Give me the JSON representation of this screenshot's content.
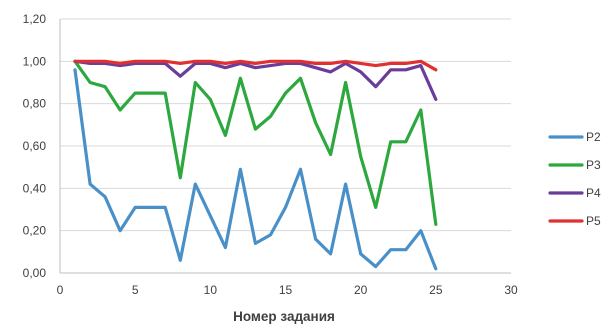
{
  "chart_data": {
    "type": "line",
    "title": "",
    "xlabel": "Номер задания",
    "ylabel": "",
    "xlim": [
      0,
      30
    ],
    "ylim": [
      0,
      1.2
    ],
    "x_ticks": [
      0,
      5,
      10,
      15,
      20,
      25,
      30
    ],
    "y_ticks": [
      0,
      0.2,
      0.4,
      0.6,
      0.8,
      1.0,
      1.2
    ],
    "x_tick_labels": [
      "0",
      "5",
      "10",
      "15",
      "20",
      "25",
      "30"
    ],
    "y_tick_labels": [
      "0,00",
      "0,20",
      "0,40",
      "0,60",
      "0,80",
      "1,00",
      "1,20"
    ],
    "grid": "horizontal",
    "legend_position": "right",
    "x": [
      1,
      2,
      3,
      4,
      5,
      6,
      7,
      8,
      9,
      10,
      11,
      12,
      13,
      14,
      15,
      16,
      17,
      18,
      19,
      20,
      21,
      22,
      23,
      24,
      25
    ],
    "series": [
      {
        "name": "P2",
        "color": "#4A90C8",
        "values": [
          0.96,
          0.42,
          0.36,
          0.2,
          0.31,
          0.31,
          0.31,
          0.06,
          0.42,
          0.27,
          0.12,
          0.49,
          0.14,
          0.18,
          0.31,
          0.49,
          0.16,
          0.09,
          0.42,
          0.09,
          0.03,
          0.11,
          0.11,
          0.2,
          0.02
        ]
      },
      {
        "name": "P3",
        "color": "#2CA83F",
        "values": [
          1.0,
          0.9,
          0.88,
          0.77,
          0.85,
          0.85,
          0.85,
          0.45,
          0.9,
          0.82,
          0.65,
          0.92,
          0.68,
          0.74,
          0.85,
          0.92,
          0.71,
          0.56,
          0.9,
          0.55,
          0.31,
          0.62,
          0.62,
          0.77,
          0.23
        ]
      },
      {
        "name": "P4",
        "color": "#6A3D9A",
        "values": [
          1.0,
          0.99,
          0.99,
          0.98,
          0.99,
          0.99,
          0.99,
          0.93,
          0.99,
          0.99,
          0.97,
          0.99,
          0.97,
          0.98,
          0.99,
          0.99,
          0.97,
          0.95,
          0.99,
          0.95,
          0.88,
          0.96,
          0.96,
          0.98,
          0.82
        ]
      },
      {
        "name": "P5",
        "color": "#E03030",
        "values": [
          1.0,
          1.0,
          1.0,
          0.99,
          1.0,
          1.0,
          1.0,
          0.99,
          1.0,
          1.0,
          0.99,
          1.0,
          0.99,
          1.0,
          1.0,
          1.0,
          0.99,
          0.99,
          1.0,
          0.99,
          0.98,
          0.99,
          0.99,
          1.0,
          0.96
        ]
      }
    ]
  }
}
